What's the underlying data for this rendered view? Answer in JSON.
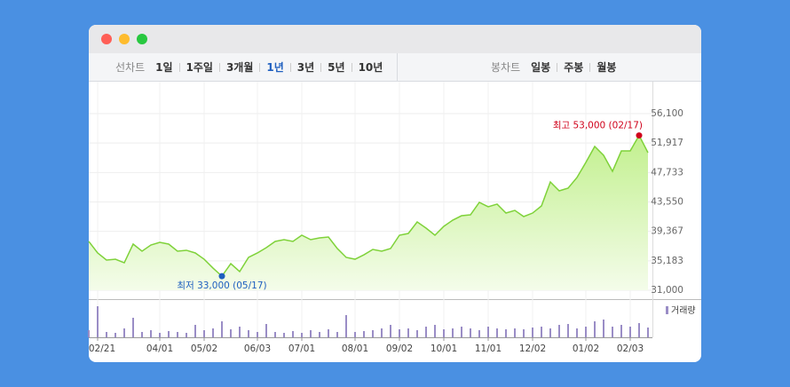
{
  "toolbar": {
    "line_label": "선차트",
    "periods": [
      "1일",
      "1주일",
      "3개월",
      "1년",
      "3년",
      "5년",
      "10년"
    ],
    "selected_period_index": 3,
    "candle_label": "봉차트",
    "candle_periods": [
      "일봉",
      "주봉",
      "월봉"
    ]
  },
  "chart_data": {
    "type": "line",
    "categories": [
      null,
      "02/21",
      null,
      null,
      null,
      null,
      null,
      null,
      "04/01",
      null,
      null,
      null,
      null,
      "05/02",
      null,
      null,
      null,
      null,
      null,
      "06/03",
      null,
      null,
      null,
      null,
      "07/01",
      null,
      null,
      null,
      null,
      null,
      "08/01",
      null,
      null,
      null,
      null,
      "09/02",
      null,
      null,
      null,
      null,
      "10/01",
      null,
      null,
      null,
      null,
      "11/01",
      null,
      null,
      null,
      null,
      "12/02",
      null,
      null,
      null,
      null,
      null,
      "01/02",
      null,
      null,
      null,
      null,
      "02/03",
      null,
      null
    ],
    "values": [
      37940,
      36300,
      35290,
      35410,
      34900,
      37560,
      36550,
      37430,
      37810,
      37560,
      36550,
      36680,
      36300,
      35410,
      34150,
      33000,
      34780,
      33650,
      35670,
      36300,
      37050,
      37940,
      38190,
      37940,
      38820,
      38190,
      38440,
      38570,
      36930,
      35670,
      35410,
      36040,
      36800,
      36550,
      36930,
      38820,
      39070,
      40710,
      39830,
      38820,
      40080,
      40960,
      41590,
      41720,
      43490,
      42860,
      43240,
      41970,
      42350,
      41470,
      41970,
      42980,
      46390,
      45130,
      45510,
      47020,
      49160,
      51430,
      50170,
      47900,
      50800,
      50800,
      53000,
      50550
    ],
    "color": "#7fd23a",
    "ylim": [
      31000,
      56100
    ],
    "yticks": [
      {
        "value": 31000,
        "label": "31,000"
      },
      {
        "value": 35183,
        "label": "35,183"
      },
      {
        "value": 39367,
        "label": "39,367"
      },
      {
        "value": 43550,
        "label": "43,550"
      },
      {
        "value": 47733,
        "label": "47,733"
      },
      {
        "value": 51917,
        "label": "51,917"
      },
      {
        "value": 56100,
        "label": "56,100"
      }
    ],
    "grid": true,
    "max_label": "최고 53,000 (02/17)",
    "max_color": "#d0021b",
    "min_label": "최저 33,000 (05/17)",
    "min_color": "#1f5fbf",
    "volume": {
      "name": "거래량",
      "color": "#9a8dc6",
      "ylim": [
        0,
        40
      ],
      "values": [
        8,
        35,
        6,
        5,
        10,
        22,
        6,
        8,
        5,
        7,
        6,
        5,
        14,
        8,
        10,
        18,
        9,
        12,
        8,
        6,
        15,
        6,
        5,
        7,
        5,
        8,
        6,
        9,
        6,
        25,
        6,
        7,
        8,
        10,
        14,
        9,
        10,
        8,
        12,
        14,
        9,
        10,
        12,
        10,
        8,
        12,
        10,
        9,
        10,
        9,
        11,
        12,
        10,
        14,
        15,
        10,
        12,
        18,
        20,
        12,
        14,
        12,
        16,
        11
      ]
    }
  }
}
